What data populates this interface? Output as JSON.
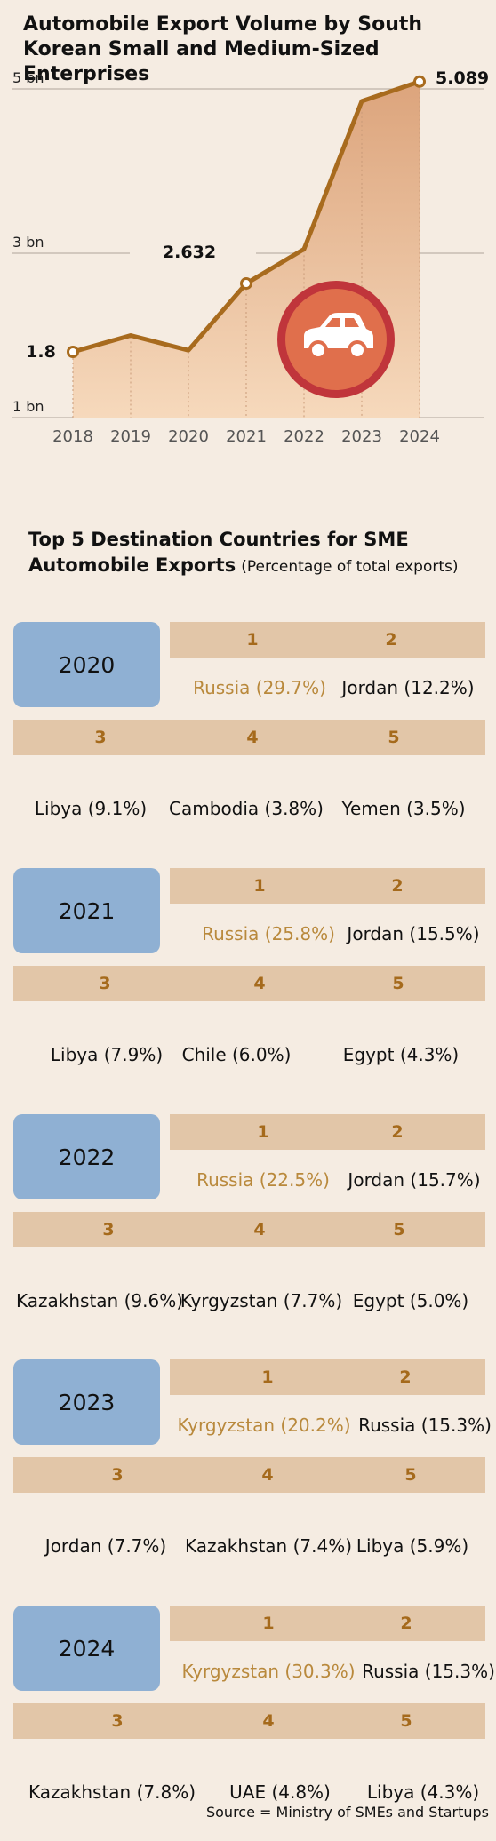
{
  "line_chart": {
    "title": "Automobile Export Volume by South Korean Small and Medium-Sized Enterprises"
  },
  "chart_data": [
    {
      "type": "area",
      "title": "Automobile Export Volume by South Korean Small and Medium-Sized Enterprises",
      "x": [
        "2018",
        "2019",
        "2020",
        "2021",
        "2022",
        "2023",
        "2024"
      ],
      "series": [
        {
          "values": [
            1.8,
            2.0,
            1.82,
            2.632,
            3.05,
            4.85,
            5.089
          ]
        }
      ],
      "yticks": [
        "1 bn",
        "3 bn",
        "5 bn"
      ],
      "ylim": [
        1,
        5
      ],
      "data_labels": [
        {
          "x": "2018",
          "text": "1.8"
        },
        {
          "x": "2021",
          "text": "2.632"
        },
        {
          "x": "2024",
          "text": "5.089"
        }
      ],
      "grid": true,
      "colors": {
        "line": "#a86b1e",
        "fill_top": "#dca47c",
        "fill_bottom": "#f6d9bc",
        "grid": "#bdb3a8",
        "icon_outer": "#c0353b",
        "icon_inner": "#e06f4c"
      },
      "icon": "car-icon"
    },
    {
      "type": "table",
      "title": "Top 5 Destination Countries for SME Automobile Exports",
      "subtitle": "(Percentage of total exports)",
      "ranks": [
        "1",
        "2",
        "3",
        "4",
        "5"
      ],
      "years": [
        {
          "year": "2020",
          "countries": [
            "Russia (29.7%)",
            "Jordan (12.2%)",
            "Libya (9.1%)",
            "Cambodia (3.8%)",
            "Yemen (3.5%)"
          ]
        },
        {
          "year": "2021",
          "countries": [
            "Russia (25.8%)",
            "Jordan (15.5%)",
            "Libya (7.9%)",
            "Chile (6.0%)",
            "Egypt (4.3%)"
          ]
        },
        {
          "year": "2022",
          "countries": [
            "Russia (22.5%)",
            "Jordan (15.7%)",
            "Kazakhstan (9.6%)",
            "Kyrgyzstan (7.7%)",
            "Egypt (5.0%)"
          ]
        },
        {
          "year": "2023",
          "countries": [
            "Kyrgyzstan (20.2%)",
            "Russia (15.3%)",
            "Jordan (7.7%)",
            "Kazakhstan (7.4%)",
            "Libya (5.9%)"
          ]
        },
        {
          "year": "2024",
          "countries": [
            "Kyrgyzstan (30.3%)",
            "Russia (15.3%)",
            "Kazakhstan (7.8%)",
            "UAE (4.8%)",
            "Libya (4.3%)"
          ]
        }
      ]
    }
  ],
  "ranking": {
    "title": "Top 5 Destination Countries for SME Automobile Exports",
    "subtitle": "(Percentage of total exports)"
  },
  "source": "Source = Ministry of SMEs and Startups"
}
